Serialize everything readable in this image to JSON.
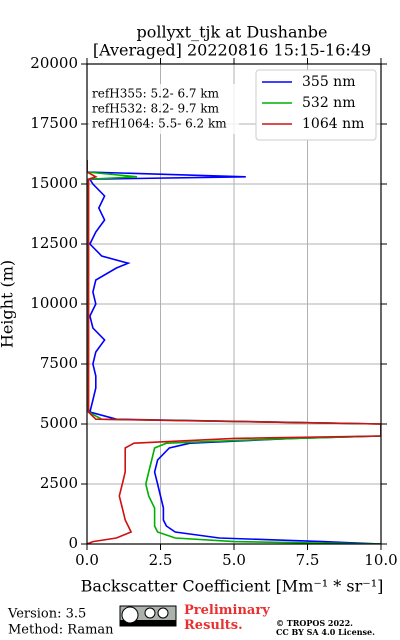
{
  "chart_data": {
    "type": "line",
    "title": "pollyxt_tjk at Dushanbe",
    "subtitle": "[Averaged] 20220816 15:15-16:49",
    "x_label": "Backscatter Coefficient [Mm⁻¹ * sr⁻¹]",
    "y_label": "Height (m)",
    "heights": [
      0,
      100,
      250,
      500,
      750,
      1000,
      1500,
      2000,
      2500,
      3000,
      3500,
      4000,
      4200,
      4400,
      4500,
      5000,
      5200,
      5500,
      6000,
      6500,
      7000,
      7500,
      8000,
      8500,
      9000,
      9500,
      10000,
      10500,
      11000,
      11500,
      11700,
      12000,
      12500,
      13000,
      13500,
      14000,
      14500,
      15000,
      15200,
      15300,
      15500,
      16000
    ],
    "series": [
      {
        "name": "355 nm",
        "color": "#0000ff",
        "values": [
          10,
          8,
          4.5,
          3.0,
          2.7,
          2.6,
          2.6,
          2.5,
          2.4,
          2.3,
          2.4,
          2.8,
          3.5,
          7,
          10,
          10,
          1,
          0.1,
          0.2,
          0.3,
          0.3,
          0.2,
          0.3,
          0.6,
          0.2,
          0.1,
          0.3,
          0.2,
          0.3,
          1.0,
          1.4,
          0.5,
          0.1,
          0.3,
          0.6,
          0.4,
          0.6,
          0.2,
          0.1,
          5.4,
          0,
          0
        ]
      },
      {
        "name": "532 nm",
        "color": "#00b000",
        "values": [
          10,
          5,
          3,
          2.4,
          2.3,
          2.3,
          2.3,
          2.1,
          2.0,
          2.1,
          2.2,
          2.3,
          2.7,
          7,
          10,
          10,
          0.5,
          0.05,
          0.05,
          0.05,
          0.05,
          0.05,
          0.05,
          0.05,
          0.05,
          0.05,
          0.05,
          0.05,
          0.05,
          0.05,
          0.05,
          0.05,
          0.05,
          0.05,
          0.05,
          0.05,
          0.05,
          0.05,
          0.05,
          1.7,
          0,
          0
        ]
      },
      {
        "name": "1064 nm",
        "color": "#d01010",
        "values": [
          0,
          0.2,
          1.0,
          1.5,
          1.4,
          1.3,
          1.2,
          1.1,
          1.2,
          1.3,
          1.3,
          1.3,
          1.6,
          5,
          10,
          10,
          0.3,
          0.05,
          0.05,
          0.05,
          0.05,
          0.05,
          0.05,
          0.05,
          0.05,
          0.05,
          0.05,
          0.05,
          0.05,
          0.05,
          0.05,
          0.05,
          0.05,
          0.05,
          0.05,
          0.05,
          0.05,
          0.05,
          0.05,
          0.3,
          0,
          0
        ]
      }
    ],
    "xlim": [
      0,
      10
    ],
    "xticks": [
      {
        "value": 0,
        "label": "0.0"
      },
      {
        "value": 2.5,
        "label": "2.5"
      },
      {
        "value": 5,
        "label": "5.0"
      },
      {
        "value": 7.5,
        "label": "7.5"
      },
      {
        "value": 10,
        "label": "10.0"
      }
    ],
    "ylim": [
      0,
      20000
    ],
    "yticks": [
      0,
      2500,
      5000,
      7500,
      10000,
      12500,
      15000,
      17500,
      20000
    ],
    "grid": true,
    "legend": "upper right",
    "annotations": [
      "refH355:  5.2- 6.7 km",
      "refH532:  8.2- 9.7 km",
      "refH1064:  5.5- 6.2 km"
    ],
    "footer": {
      "version": "Version: 3.5",
      "method": "Method: Raman",
      "preliminary": "Preliminary Results.",
      "copyright": "© TROPOS 2022.",
      "license": "CC BY SA 4.0 License."
    }
  }
}
